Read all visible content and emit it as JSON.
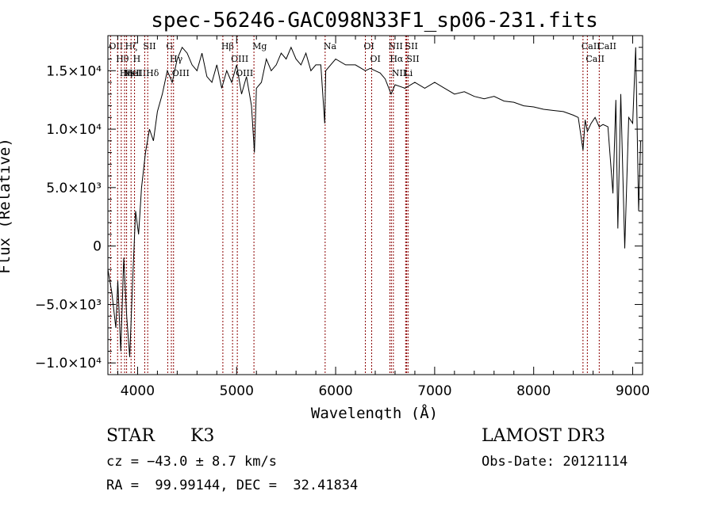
{
  "chart_data": {
    "type": "line",
    "title": "spec-56246-GAC098N33F1_sp06-231.fits",
    "xlabel": "Wavelength (Å)",
    "ylabel": "Flux (Relative)",
    "xlim": [
      3700,
      9100
    ],
    "ylim": [
      -11000,
      18000
    ],
    "xticks": [
      4000,
      5000,
      6000,
      7000,
      8000,
      9000
    ],
    "xtick_labels": [
      "4000",
      "5000",
      "6000",
      "7000",
      "8000",
      "9000"
    ],
    "yticks": [
      -10000,
      -5000,
      0,
      5000,
      10000,
      15000
    ],
    "ytick_labels": [
      "−1.0×10⁴",
      "−5.0×10³",
      "0",
      "5.0×10³",
      "1.0×10⁴",
      "1.5×10⁴"
    ],
    "series": [
      {
        "x": [
          3700,
          3740,
          3780,
          3800,
          3830,
          3860,
          3890,
          3920,
          3950,
          3980,
          4010,
          4040,
          4080,
          4120,
          4160,
          4200,
          4250,
          4300,
          4350,
          4400,
          4450,
          4500,
          4550,
          4600,
          4650,
          4700,
          4750,
          4800,
          4850,
          4900,
          4950,
          5000,
          5050,
          5100,
          5150,
          5180,
          5200,
          5250,
          5300,
          5350,
          5400,
          5450,
          5500,
          5550,
          5600,
          5650,
          5700,
          5750,
          5800,
          5850,
          5890,
          5900,
          5950,
          6000,
          6100,
          6200,
          6300,
          6350,
          6400,
          6450,
          6500,
          6560,
          6600,
          6700,
          6800,
          6900,
          7000,
          7100,
          7200,
          7300,
          7400,
          7500,
          7600,
          7700,
          7800,
          7900,
          8000,
          8100,
          8200,
          8300,
          8400,
          8450,
          8498,
          8520,
          8542,
          8580,
          8620,
          8662,
          8700,
          8750,
          8800,
          8830,
          8850,
          8880,
          8920,
          8960,
          9000,
          9030,
          9060,
          9080
        ],
        "y": [
          -2000,
          -4000,
          -7000,
          -3000,
          -9000,
          -1000,
          -6000,
          -9500,
          -3000,
          3000,
          1000,
          5000,
          8000,
          10000,
          9000,
          11500,
          13000,
          15000,
          14000,
          16000,
          17000,
          16500,
          15500,
          15000,
          16500,
          14500,
          14000,
          15500,
          13500,
          15000,
          14000,
          15500,
          13000,
          14500,
          12000,
          8000,
          13500,
          14000,
          16000,
          15000,
          15500,
          16500,
          16000,
          17000,
          16000,
          15500,
          16500,
          15000,
          15500,
          15500,
          10500,
          15000,
          15500,
          16000,
          15500,
          15500,
          15000,
          15200,
          15000,
          14800,
          14300,
          13000,
          13800,
          13500,
          14000,
          13500,
          14000,
          13500,
          13000,
          13200,
          12800,
          12600,
          12800,
          12400,
          12300,
          12000,
          11900,
          11700,
          11600,
          11500,
          11200,
          11000,
          8200,
          10800,
          9800,
          10500,
          11000,
          10200,
          10400,
          10200,
          4500,
          12500,
          1500,
          13000,
          -200,
          11000,
          10500,
          17000,
          3000,
          9000
        ]
      }
    ],
    "line_markers": [
      {
        "wavelength": 3727,
        "labels": [
          "OII"
        ]
      },
      {
        "wavelength": 3798,
        "labels": [
          "Hθ"
        ]
      },
      {
        "wavelength": 3835,
        "labels": [
          "Hη"
        ]
      },
      {
        "wavelength": 3869,
        "labels": [
          "NeIII"
        ]
      },
      {
        "wavelength": 3889,
        "labels": [
          "Hζ",
          "HeI"
        ]
      },
      {
        "wavelength": 3934,
        "labels": [
          "K"
        ]
      },
      {
        "wavelength": 3969,
        "labels": [
          "H"
        ]
      },
      {
        "wavelength": 4072,
        "labels": [
          "SII"
        ]
      },
      {
        "wavelength": 4102,
        "labels": [
          "Hδ"
        ]
      },
      {
        "wavelength": 4304,
        "labels": [
          "G"
        ]
      },
      {
        "wavelength": 4341,
        "labels": [
          "Hγ"
        ]
      },
      {
        "wavelength": 4363,
        "labels": [
          "OIII"
        ]
      },
      {
        "wavelength": 4861,
        "labels": [
          "Hβ"
        ]
      },
      {
        "wavelength": 4959,
        "labels": [
          "OIII"
        ]
      },
      {
        "wavelength": 5007,
        "labels": [
          "OIII"
        ]
      },
      {
        "wavelength": 5175,
        "labels": [
          "Mg"
        ]
      },
      {
        "wavelength": 5894,
        "labels": [
          "Na"
        ]
      },
      {
        "wavelength": 6300,
        "labels": [
          "OI"
        ]
      },
      {
        "wavelength": 6364,
        "labels": [
          "OI"
        ]
      },
      {
        "wavelength": 6548,
        "labels": [
          "NII"
        ]
      },
      {
        "wavelength": 6563,
        "labels": [
          "Hα"
        ]
      },
      {
        "wavelength": 6583,
        "labels": [
          "NII"
        ]
      },
      {
        "wavelength": 6707,
        "labels": [
          "Li"
        ]
      },
      {
        "wavelength": 6717,
        "labels": [
          "SII"
        ]
      },
      {
        "wavelength": 6731,
        "labels": [
          "SII"
        ]
      },
      {
        "wavelength": 8498,
        "labels": [
          "CaII"
        ]
      },
      {
        "wavelength": 8542,
        "labels": [
          "CaII"
        ]
      },
      {
        "wavelength": 8662,
        "labels": [
          "CaII"
        ]
      }
    ],
    "colors": {
      "line": "#000000",
      "markers": "#8b0000",
      "axes": "#000000"
    }
  },
  "info": {
    "class": "STAR",
    "subclass": "K3",
    "survey": "LAMOST DR3",
    "cz": "cz = −43.0 ± 8.7 km/s",
    "obs_date": "Obs-Date: 20121114",
    "coords": "RA =  99.99144, DEC =  32.41834"
  }
}
